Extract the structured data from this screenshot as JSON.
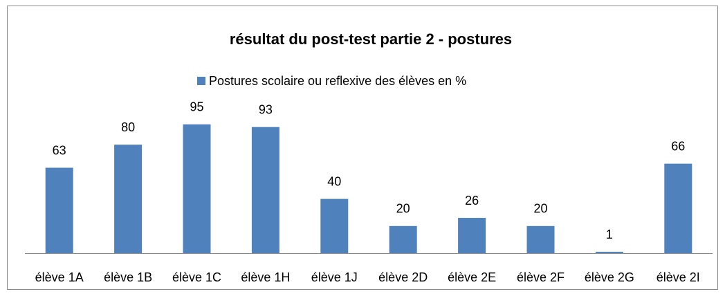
{
  "chart_data": {
    "type": "bar",
    "title": "résultat du post-test partie 2 - postures",
    "categories": [
      "élève 1A",
      "élève 1B",
      "élève 1C",
      "élève 1H",
      "élève 1J",
      "élève 2D",
      "élève 2E",
      "élève 2F",
      "élève 2G",
      "élève 2I"
    ],
    "series": [
      {
        "name": "Postures scolaire ou reflexive des élèves en %",
        "color": "#4f81bd",
        "values": [
          63,
          80,
          95,
          93,
          40,
          20,
          26,
          20,
          1,
          66
        ]
      }
    ],
    "legend": "top"
  }
}
